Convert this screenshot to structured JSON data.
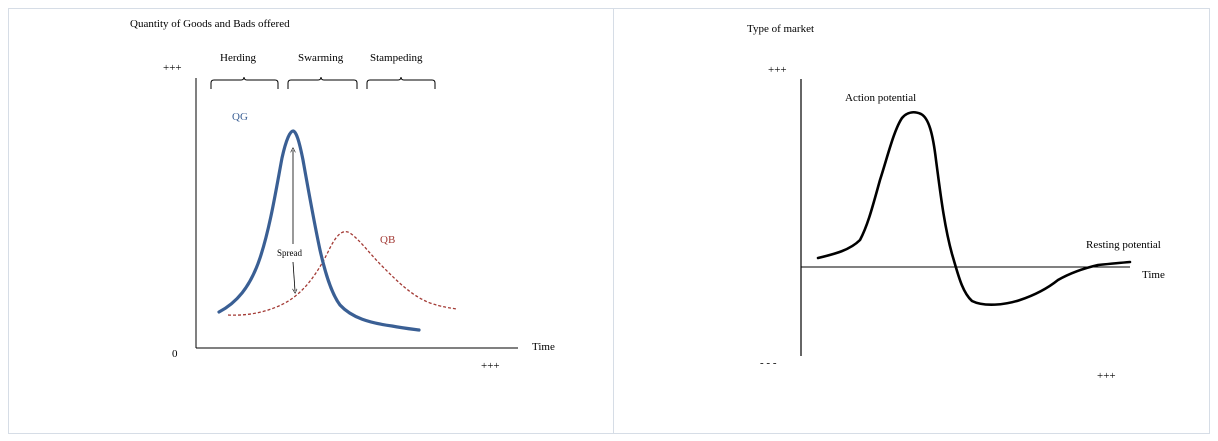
{
  "left_panel": {
    "y_axis_title": "Quantity of Goods and Bads offered",
    "y_max_label": "+++",
    "origin_label": "0",
    "x_axis_label": "Time",
    "x_max_label": "+++",
    "phases": [
      "Herding",
      "Swarming",
      "Stampeding"
    ],
    "qg_label": "QG",
    "qb_label": "QB",
    "spread_label": "Spread",
    "colors": {
      "qg": "#3a5f94",
      "qb": "#a33a35",
      "axis": "#000000"
    }
  },
  "right_panel": {
    "y_axis_title": "Type of market",
    "y_max_label": "+++",
    "y_min_label": "- - -",
    "x_axis_label": "Time",
    "x_max_label": "+++",
    "action_label": "Action potential",
    "resting_label": "Resting potential",
    "colors": {
      "curve": "#000000",
      "axis": "#000000"
    }
  }
}
